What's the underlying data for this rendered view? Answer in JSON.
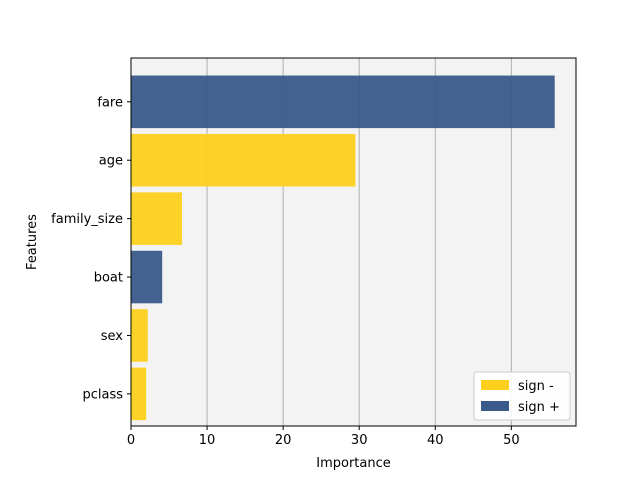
{
  "chart_data": {
    "type": "bar",
    "orientation": "horizontal",
    "title": "",
    "xlabel": "Importance",
    "ylabel": "Features",
    "categories": [
      "fare",
      "age",
      "family_size",
      "boat",
      "sex",
      "pclass"
    ],
    "values": [
      55.7,
      29.5,
      6.7,
      4.1,
      2.2,
      2.0
    ],
    "signs": [
      "+",
      "-",
      "-",
      "+",
      "-",
      "-"
    ],
    "xlim": [
      0,
      58.5
    ],
    "xticks": [
      0,
      10,
      20,
      30,
      40,
      50
    ],
    "xtick_labels": [
      "0",
      "10",
      "20",
      "30",
      "40",
      "50"
    ],
    "grid": "x-major",
    "legend": {
      "position": "bottom-right",
      "entries": [
        {
          "label": "sign -",
          "sign": "-",
          "color": "#fcd01c"
        },
        {
          "label": "sign +",
          "sign": "+",
          "color": "#3a5a8a"
        }
      ]
    },
    "colors": {
      "negative": "#fcd01c",
      "positive": "#3a5a8a",
      "background": "#f3f3f3",
      "grid": "#b0b0b0"
    }
  }
}
